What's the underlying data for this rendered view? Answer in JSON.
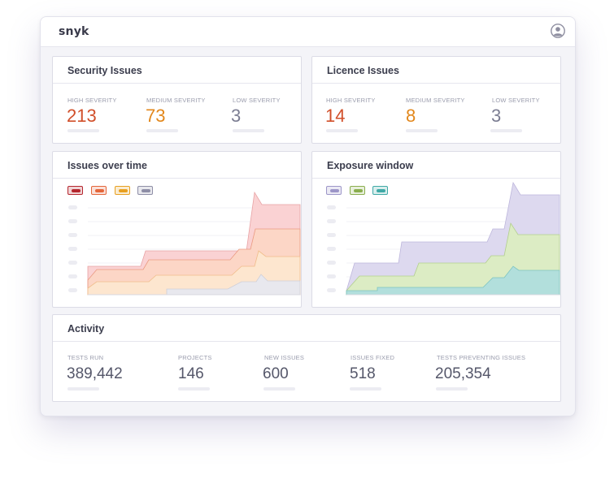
{
  "app": {
    "logo_text": "snyk",
    "user_icon": "user-circle-icon"
  },
  "colors": {
    "high": "#d14f2a",
    "medium": "#e2871b",
    "low": "#7b7d92"
  },
  "security_issues": {
    "title": "Security Issues",
    "stats": [
      {
        "label": "HIGH SEVERITY",
        "value": "213"
      },
      {
        "label": "MEDIUM  SEVERITY",
        "value": "73"
      },
      {
        "label": "LOW SEVERITY",
        "value": "3"
      }
    ]
  },
  "licence_issues": {
    "title": "Licence Issues",
    "stats": [
      {
        "label": "HIGH SEVERITY",
        "value": "14"
      },
      {
        "label": "MEDIUM  SEVERITY",
        "value": "8"
      },
      {
        "label": "LOW SEVERITY",
        "value": "3"
      }
    ]
  },
  "issues_over_time": {
    "title": "Issues over time",
    "legend_colors": [
      "#b5262e",
      "#e4663a",
      "#e8a020",
      "#8e8ea6"
    ]
  },
  "exposure_window": {
    "title": "Exposure window",
    "legend_colors": [
      "#9d96c8",
      "#8aae4e",
      "#3fa9a6"
    ]
  },
  "activity": {
    "title": "Activity",
    "stats": [
      {
        "label": "TESTS RUN",
        "value": "389,442"
      },
      {
        "label": "PROJECTS",
        "value": "146"
      },
      {
        "label": "NEW ISSUES",
        "value": "600"
      },
      {
        "label": "ISSUES FIXED",
        "value": "518"
      },
      {
        "label": "TESTS PREVENTING ISSUES",
        "value": "205,354"
      }
    ]
  }
}
